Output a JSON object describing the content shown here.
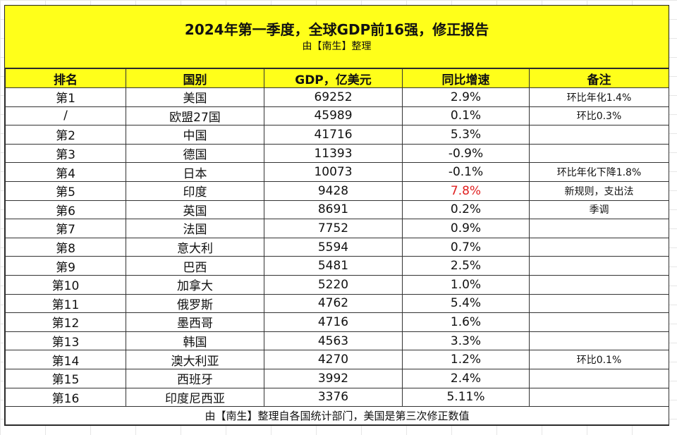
{
  "title": "2024年第一季度，全球GDP前16强，修正报告",
  "subtitle": "由【南生】整理",
  "headers": [
    "排名",
    "国别",
    "GDP，亿美元",
    "同比增速",
    "备注"
  ],
  "rows": [
    {
      "rank": "第1",
      "country": "美国",
      "gdp": "69252",
      "growth": "2.9%",
      "note": "环比年化1.4%"
    },
    {
      "rank": "/",
      "country": "欧盟27国",
      "gdp": "45989",
      "growth": "0.1%",
      "note": "环比0.3%"
    },
    {
      "rank": "第2",
      "country": "中国",
      "gdp": "41716",
      "growth": "5.3%",
      "note": ""
    },
    {
      "rank": "第3",
      "country": "德国",
      "gdp": "11393",
      "growth": "-0.9%",
      "note": ""
    },
    {
      "rank": "第4",
      "country": "日本",
      "gdp": "10073",
      "growth": "-0.1%",
      "note": "环比年化下降1.8%"
    },
    {
      "rank": "第5",
      "country": "印度",
      "gdp": "9428",
      "growth": "7.8%",
      "note": "新规则，支出法",
      "growth_color": "#e02020"
    },
    {
      "rank": "第6",
      "country": "英国",
      "gdp": "8691",
      "growth": "0.2%",
      "note": "季调"
    },
    {
      "rank": "第7",
      "country": "法国",
      "gdp": "7752",
      "growth": "0.9%",
      "note": ""
    },
    {
      "rank": "第8",
      "country": "意大利",
      "gdp": "5594",
      "growth": "0.7%",
      "note": ""
    },
    {
      "rank": "第9",
      "country": "巴西",
      "gdp": "5481",
      "growth": "2.5%",
      "note": ""
    },
    {
      "rank": "第10",
      "country": "加拿大",
      "gdp": "5220",
      "growth": "1.0%",
      "note": ""
    },
    {
      "rank": "第11",
      "country": "俄罗斯",
      "gdp": "4762",
      "growth": "5.4%",
      "note": ""
    },
    {
      "rank": "第12",
      "country": "墨西哥",
      "gdp": "4716",
      "growth": "1.6%",
      "note": ""
    },
    {
      "rank": "第13",
      "country": "韩国",
      "gdp": "4563",
      "growth": "3.3%",
      "note": ""
    },
    {
      "rank": "第14",
      "country": "澳大利亚",
      "gdp": "4270",
      "growth": "1.2%",
      "note": "环比0.1%"
    },
    {
      "rank": "第15",
      "country": "西班牙",
      "gdp": "3992",
      "growth": "2.4%",
      "note": ""
    },
    {
      "rank": "第16",
      "country": "印度尼西亚",
      "gdp": "3376",
      "growth": "5.11%",
      "note": ""
    }
  ],
  "footer": "由【南生】整理自各国统计部门，美国是第三次修正数值",
  "colors": {
    "header_bg": "#ffff1a",
    "highlight_text": "#e02020"
  }
}
